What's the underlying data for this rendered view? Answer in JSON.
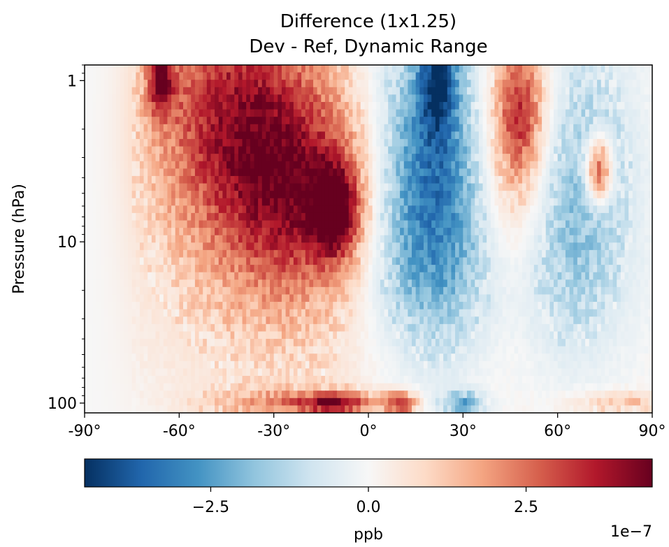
{
  "chart_data": {
    "type": "heatmap",
    "title": "Difference (1x1.25)",
    "subtitle": "Dev - Ref, Dynamic Range",
    "xlabel": "",
    "ylabel": "Pressure (hPa)",
    "xlim": [
      -90,
      90
    ],
    "ylim": [
      115,
      0.8
    ],
    "y_scale": "log",
    "x_ticks": [
      -90,
      -60,
      -30,
      0,
      30,
      60,
      90
    ],
    "x_tick_labels": [
      "-90°",
      "-60°",
      "-30°",
      "0°",
      "30°",
      "60°",
      "90°"
    ],
    "y_ticks": [
      1,
      10,
      100
    ],
    "y_tick_labels": [
      "1",
      "10",
      "100"
    ],
    "colormap": "RdBu_r",
    "colormap_stops": [
      "#053061",
      "#2166ac",
      "#4393c3",
      "#92c5de",
      "#d1e5f0",
      "#f7f7f7",
      "#fddbc7",
      "#f4a582",
      "#d6604d",
      "#b2182b",
      "#67001f"
    ],
    "colorbar": {
      "label": "ppb",
      "range": [
        -4.5,
        4.5
      ],
      "ticks": [
        -2.5,
        0.0,
        2.5
      ],
      "tick_labels": [
        "−2.5",
        "0.0",
        "2.5"
      ],
      "offset_text": "1e−7",
      "orientation": "horizontal"
    },
    "features": [
      {
        "lat": -45,
        "p": 1.3,
        "sx": 18,
        "sy": 0.55,
        "v": 2.3
      },
      {
        "lat": -20,
        "p": 5.0,
        "sx": 16,
        "sy": 0.45,
        "v": 2.4
      },
      {
        "lat": -10,
        "p": 6.5,
        "sx": 5,
        "sy": 0.2,
        "v": 3.6
      },
      {
        "lat": -66,
        "p": 1.0,
        "sx": 3,
        "sy": 0.15,
        "v": 3.2
      },
      {
        "lat": -35,
        "p": 3.0,
        "sx": 22,
        "sy": 0.7,
        "v": 1.4
      },
      {
        "lat": -30,
        "p": 20,
        "sx": 35,
        "sy": 0.8,
        "v": 0.5
      },
      {
        "lat": 20,
        "p": 2.0,
        "sx": 12,
        "sy": 0.7,
        "v": -2.1
      },
      {
        "lat": 20,
        "p": 9.0,
        "sx": 16,
        "sy": 0.55,
        "v": -1.9
      },
      {
        "lat": 22,
        "p": 1.0,
        "sx": 4,
        "sy": 0.25,
        "v": -2.8
      },
      {
        "lat": 60,
        "p": 9.5,
        "sx": 14,
        "sy": 0.55,
        "v": -1.3
      },
      {
        "lat": 45,
        "p": 4.0,
        "sx": 10,
        "sy": 0.6,
        "v": 2.0
      },
      {
        "lat": 48,
        "p": 1.5,
        "sx": 5,
        "sy": 0.3,
        "v": 2.6
      },
      {
        "lat": 73,
        "p": 3.6,
        "sx": 3,
        "sy": 0.15,
        "v": 3.8
      },
      {
        "lat": 70,
        "p": 3.0,
        "sx": 10,
        "sy": 0.6,
        "v": -1.0
      },
      {
        "lat": 30,
        "p": 30,
        "sx": 25,
        "sy": 0.7,
        "v": -0.3
      },
      {
        "lat": 30,
        "p": 70,
        "sx": 30,
        "sy": 0.35,
        "v": 0.35
      },
      {
        "lat": -10,
        "p": 100,
        "sx": 8,
        "sy": 0.05,
        "v": 3.5
      },
      {
        "lat": 10,
        "p": 100,
        "sx": 4,
        "sy": 0.05,
        "v": 3.3
      },
      {
        "lat": 30,
        "p": 100,
        "sx": 5,
        "sy": 0.05,
        "v": -2.2
      },
      {
        "lat": 80,
        "p": 100,
        "sx": 12,
        "sy": 0.05,
        "v": 1.2
      },
      {
        "lat": -30,
        "p": 100,
        "sx": 14,
        "sy": 0.06,
        "v": 1.6
      }
    ]
  }
}
